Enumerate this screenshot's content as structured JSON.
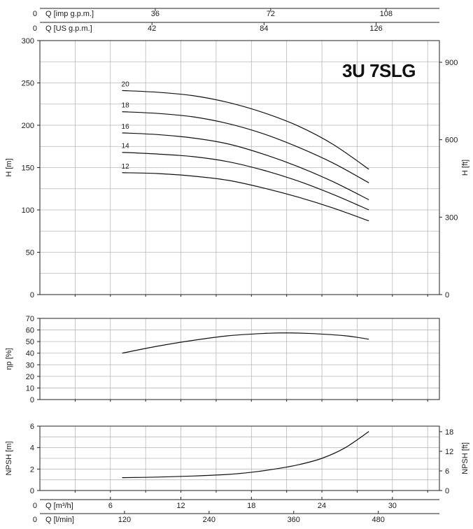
{
  "chart_data": [
    {
      "type": "line",
      "name": "head",
      "title": "3U 7SLG",
      "ylabel": "H [m]",
      "y2label": "H [ft]",
      "xlim": [
        0,
        34
      ],
      "ylim": [
        0,
        300
      ],
      "y2lim": [
        0,
        984
      ],
      "yticks": [
        "0",
        "50",
        "100",
        "150",
        "200",
        "250",
        "300"
      ],
      "y2ticks": [
        "0",
        "300",
        "600",
        "900"
      ],
      "grid": true,
      "series": [
        {
          "name": "20",
          "x": [
            7,
            10,
            13,
            16,
            19,
            22,
            25,
            28
          ],
          "y": [
            241,
            239,
            235,
            227,
            215,
            199,
            177,
            148
          ]
        },
        {
          "name": "18",
          "x": [
            7,
            10,
            13,
            16,
            19,
            22,
            25,
            28
          ],
          "y": [
            216,
            214,
            210,
            202,
            190,
            174,
            155,
            132
          ]
        },
        {
          "name": "16",
          "x": [
            7,
            10,
            13,
            16,
            19,
            22,
            25,
            28
          ],
          "y": [
            191,
            189,
            185,
            178,
            166,
            151,
            133,
            112
          ]
        },
        {
          "name": "14",
          "x": [
            7,
            10,
            13,
            16,
            19,
            22,
            25,
            28
          ],
          "y": [
            168,
            166,
            163,
            157,
            147,
            134,
            118,
            100
          ]
        },
        {
          "name": "12",
          "x": [
            7,
            10,
            13,
            16,
            19,
            22,
            25,
            28
          ],
          "y": [
            144,
            143,
            140,
            135,
            126,
            115,
            102,
            87
          ]
        }
      ]
    },
    {
      "type": "line",
      "name": "efficiency",
      "ylabel": "ηp [%]",
      "xlim": [
        0,
        34
      ],
      "ylim": [
        0,
        70
      ],
      "yticks": [
        "0",
        "10",
        "20",
        "30",
        "40",
        "50",
        "60",
        "70"
      ],
      "grid": true,
      "series": [
        {
          "x": [
            7,
            10,
            13,
            16,
            19,
            21,
            23,
            26,
            28
          ],
          "y": [
            40,
            46,
            51,
            55,
            57,
            57.5,
            57,
            55,
            52
          ]
        }
      ]
    },
    {
      "type": "line",
      "name": "npsh",
      "ylabel": "NPSH [m]",
      "y2label": "NPSH [ft]",
      "xlim": [
        0,
        34
      ],
      "ylim": [
        0,
        6
      ],
      "y2lim": [
        0,
        19.7
      ],
      "yticks": [
        "0",
        "2",
        "4",
        "6"
      ],
      "y2ticks": [
        "0",
        "6",
        "12",
        "18"
      ],
      "grid": true,
      "series": [
        {
          "x": [
            7,
            10,
            13,
            16,
            18,
            20,
            22,
            24,
            26,
            28
          ],
          "y": [
            1.2,
            1.25,
            1.35,
            1.5,
            1.7,
            2.0,
            2.4,
            3.0,
            4.0,
            5.5
          ]
        }
      ]
    }
  ],
  "axes": {
    "top1": {
      "label": "Q [imp g.p.m.]",
      "zero": "0",
      "ticks": [
        "36",
        "72",
        "108"
      ],
      "values": [
        36,
        72,
        108
      ],
      "m3h_per_unit": 0.2728
    },
    "top2": {
      "label": "Q [US g.p.m.]",
      "zero": "0",
      "ticks": [
        "42",
        "84",
        "126"
      ],
      "values": [
        42,
        84,
        126
      ],
      "m3h_per_unit": 0.2271
    },
    "bottom1": {
      "label": "Q [m³/h]",
      "zero": "0",
      "ticks": [
        "6",
        "12",
        "18",
        "24",
        "30"
      ],
      "values": [
        6,
        12,
        18,
        24,
        30
      ],
      "m3h_per_unit": 1
    },
    "bottom2": {
      "label": "Q [l/min]",
      "zero": "0",
      "ticks": [
        "120",
        "240",
        "360",
        "480"
      ],
      "values": [
        120,
        240,
        360,
        480
      ],
      "m3h_per_unit": 0.06
    }
  }
}
